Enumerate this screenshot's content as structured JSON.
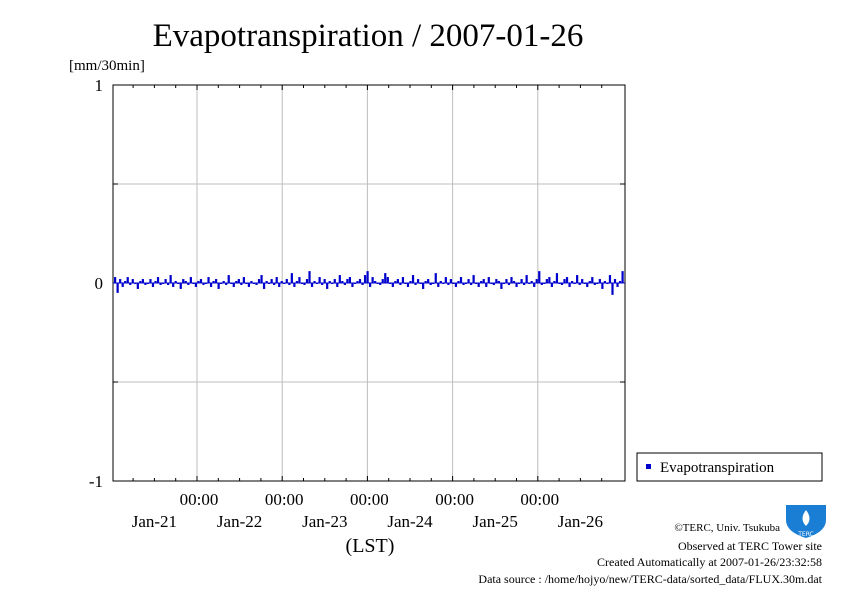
{
  "chart_data": {
    "type": "bar",
    "title": "Evapotranspiration / 2007-01-26",
    "unit_label": "[mm/30min]",
    "xlabel": "(LST)",
    "ylim": [
      -1,
      1
    ],
    "yticks": [
      "1",
      "0",
      "-1"
    ],
    "ytick_values": [
      1,
      0,
      -1
    ],
    "x_time_labels": [
      "00:00",
      "00:00",
      "00:00",
      "00:00",
      "00:00"
    ],
    "x_date_labels": [
      "Jan-21",
      "Jan-22",
      "Jan-23",
      "Jan-24",
      "Jan-25",
      "Jan-26"
    ],
    "grid": true,
    "legend_position": "right",
    "series": [
      {
        "name": "Evapotranspiration",
        "color": "#0000cc",
        "values": [
          0.03,
          -0.05,
          0.02,
          -0.02,
          0.01,
          0.03,
          -0.01,
          0.02,
          0.0,
          -0.03,
          0.01,
          0.02,
          -0.01,
          0.0,
          0.02,
          -0.02,
          0.01,
          0.03,
          -0.01,
          0.0,
          0.02,
          -0.01,
          0.04,
          -0.02,
          0.01,
          0.0,
          -0.03,
          0.02,
          0.01,
          -0.01,
          0.03,
          0.0,
          -0.02,
          0.01,
          0.02,
          -0.01,
          0.0,
          0.03,
          -0.02,
          0.01,
          0.02,
          -0.03,
          0.0,
          0.01,
          -0.01,
          0.04,
          0.0,
          -0.02,
          0.01,
          0.02,
          -0.01,
          0.03,
          0.0,
          -0.02,
          0.01,
          0.0,
          -0.01,
          0.02,
          0.04,
          -0.03,
          0.01,
          0.0,
          0.02,
          -0.01,
          0.03,
          -0.02,
          0.01,
          0.0,
          0.02,
          -0.01,
          0.05,
          -0.02,
          0.01,
          0.03,
          0.0,
          -0.01,
          0.02,
          0.06,
          -0.02,
          0.01,
          0.0,
          0.03,
          -0.01,
          0.02,
          -0.03,
          0.01,
          0.0,
          0.02,
          -0.02,
          0.04,
          0.01,
          -0.01,
          0.02,
          0.03,
          -0.02,
          0.0,
          0.01,
          0.02,
          -0.01,
          0.04,
          0.06,
          -0.02,
          0.03,
          0.01,
          0.0,
          -0.01,
          0.02,
          0.05,
          0.03,
          0.0,
          -0.02,
          0.01,
          0.02,
          -0.01,
          0.03,
          0.0,
          -0.02,
          0.01,
          0.04,
          -0.01,
          0.02,
          0.0,
          -0.03,
          0.01,
          0.02,
          -0.01,
          0.0,
          0.05,
          -0.02,
          0.01,
          0.0,
          0.03,
          -0.01,
          0.02,
          0.0,
          -0.02,
          0.01,
          0.03,
          -0.01,
          0.0,
          0.02,
          -0.01,
          0.04,
          0.0,
          -0.02,
          0.01,
          0.02,
          -0.02,
          0.03,
          0.0,
          -0.01,
          0.02,
          0.01,
          -0.03,
          0.0,
          0.02,
          -0.01,
          0.03,
          0.01,
          -0.02,
          0.0,
          0.02,
          -0.01,
          0.04,
          0.0,
          0.01,
          -0.02,
          0.02,
          0.06,
          -0.01,
          0.0,
          0.02,
          0.03,
          -0.02,
          0.01,
          0.05,
          0.0,
          -0.01,
          0.02,
          0.03,
          -0.02,
          0.01,
          0.0,
          0.04,
          -0.01,
          0.02,
          0.0,
          -0.02,
          0.01,
          0.03,
          -0.01,
          0.0,
          0.02,
          -0.03,
          0.01,
          0.0,
          0.04,
          -0.06,
          0.02,
          -0.02,
          0.01,
          0.06
        ]
      }
    ]
  },
  "credits": {
    "copyright": "©TERC, Univ. Tsukuba",
    "observed": "Observed at TERC Tower site",
    "created": "Created Automatically at 2007-01-26/23:32:58",
    "source": "Data source : /home/hojyo/new/TERC-data/sorted_data/FLUX.30m.dat",
    "logo_text": "TERC",
    "logo_color": "#1a7fd4"
  }
}
